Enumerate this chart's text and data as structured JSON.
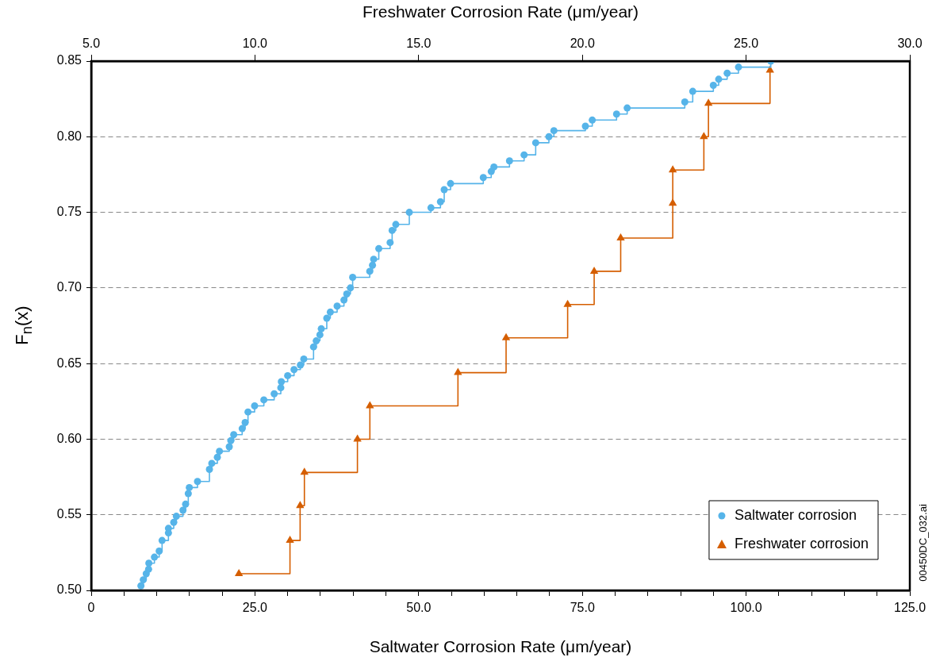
{
  "chart_data": {
    "type": "step",
    "xlabel": "Saltwater Corrosion Rate (μm/year)",
    "x2label": "Freshwater Corrosion Rate (μm/year)",
    "ylabel": "F$_{n}$(x)",
    "xlim": [
      0,
      125
    ],
    "xticks": [
      {
        "value": 0,
        "label": "0"
      },
      {
        "value": 5,
        "label": null
      },
      {
        "value": 10,
        "label": null
      },
      {
        "value": 15,
        "label": null
      },
      {
        "value": 20,
        "label": null
      },
      {
        "value": 25,
        "label": "25.0"
      },
      {
        "value": 30,
        "label": null
      },
      {
        "value": 35,
        "label": null
      },
      {
        "value": 40,
        "label": null
      },
      {
        "value": 45,
        "label": null
      },
      {
        "value": 50,
        "label": "50.0"
      },
      {
        "value": 55,
        "label": null
      },
      {
        "value": 60,
        "label": null
      },
      {
        "value": 65,
        "label": null
      },
      {
        "value": 70,
        "label": null
      },
      {
        "value": 75,
        "label": "75.0"
      },
      {
        "value": 80,
        "label": null
      },
      {
        "value": 85,
        "label": null
      },
      {
        "value": 90,
        "label": null
      },
      {
        "value": 95,
        "label": null
      },
      {
        "value": 100,
        "label": "100.0"
      },
      {
        "value": 105,
        "label": null
      },
      {
        "value": 110,
        "label": null
      },
      {
        "value": 115,
        "label": null
      },
      {
        "value": 120,
        "label": null
      },
      {
        "value": 125,
        "label": "125.0"
      }
    ],
    "x2lim": [
      5,
      30
    ],
    "x2ticks": [
      {
        "value": 5,
        "label": "5.0"
      },
      {
        "value": 10,
        "label": "10.0"
      },
      {
        "value": 15,
        "label": "15.0"
      },
      {
        "value": 20,
        "label": "20.0"
      },
      {
        "value": 25,
        "label": "25.0"
      },
      {
        "value": 30,
        "label": "30.0"
      }
    ],
    "ylim": [
      0.5,
      0.85
    ],
    "yticks": [
      {
        "value": 0.5,
        "label": "0.50"
      },
      {
        "value": 0.55,
        "label": "0.55"
      },
      {
        "value": 0.6,
        "label": "0.60"
      },
      {
        "value": 0.65,
        "label": "0.65"
      },
      {
        "value": 0.7,
        "label": "0.70"
      },
      {
        "value": 0.75,
        "label": "0.75"
      },
      {
        "value": 0.8,
        "label": "0.80"
      },
      {
        "value": 0.85,
        "label": "0.85"
      }
    ],
    "grid": "y",
    "legend": "bottom right",
    "line_style": "solid",
    "annotations": [
      "00450DC_032.ai"
    ],
    "series": [
      {
        "name": "Saltwater corrosion",
        "color": "#56b4e9",
        "marker": "circle",
        "x": [
          7.59,
          7.95,
          8.4,
          8.76,
          8.8,
          9.65,
          10.38,
          10.82,
          11.79,
          11.79,
          12.6,
          13.0,
          14.01,
          14.41,
          14.82,
          14.98,
          16.23,
          18.05,
          18.41,
          19.26,
          19.58,
          21.08,
          21.32,
          21.76,
          23.05,
          23.5,
          23.94,
          24.95,
          26.36,
          27.94,
          28.95,
          29.03,
          30.0,
          30.97,
          31.94,
          32.46,
          33.95,
          34.36,
          34.92,
          35.13,
          35.97,
          36.51,
          37.55,
          38.59,
          39.02,
          39.58,
          39.92,
          42.53,
          42.95,
          43.13,
          43.91,
          45.64,
          45.95,
          46.51,
          48.57,
          51.88,
          53.33,
          53.9,
          54.87,
          59.87,
          61.08,
          61.49,
          63.87,
          66.1,
          67.87,
          69.89,
          70.65,
          75.46,
          76.51,
          80.22,
          81.84,
          90.64,
          91.85,
          95.0,
          95.81,
          97.11,
          98.84,
          103.77
        ],
        "values": [
          0.503,
          0.507,
          0.511,
          0.514,
          0.518,
          0.522,
          0.526,
          0.533,
          0.538,
          0.541,
          0.545,
          0.549,
          0.553,
          0.557,
          0.564,
          0.568,
          0.572,
          0.58,
          0.584,
          0.588,
          0.592,
          0.595,
          0.599,
          0.603,
          0.607,
          0.611,
          0.618,
          0.622,
          0.626,
          0.63,
          0.634,
          0.638,
          0.642,
          0.646,
          0.649,
          0.653,
          0.661,
          0.665,
          0.669,
          0.673,
          0.68,
          0.684,
          0.688,
          0.692,
          0.696,
          0.7,
          0.707,
          0.711,
          0.715,
          0.719,
          0.726,
          0.73,
          0.738,
          0.742,
          0.75,
          0.753,
          0.757,
          0.765,
          0.769,
          0.773,
          0.777,
          0.78,
          0.784,
          0.788,
          0.796,
          0.8,
          0.804,
          0.807,
          0.811,
          0.815,
          0.819,
          0.823,
          0.83,
          0.834,
          0.838,
          0.842,
          0.846,
          0.85
        ]
      },
      {
        "name": "Freshwater corrosion",
        "color": "#d55e00",
        "marker": "triangle",
        "axis": "x2",
        "x": [
          9.51,
          11.07,
          11.38,
          11.51,
          13.13,
          13.51,
          16.2,
          17.67,
          19.55,
          20.36,
          21.17,
          22.76,
          22.76,
          23.71,
          23.85,
          25.73
        ],
        "values": [
          0.511,
          0.533,
          0.556,
          0.578,
          0.6,
          0.622,
          0.644,
          0.667,
          0.689,
          0.711,
          0.733,
          0.756,
          0.778,
          0.8,
          0.822,
          0.844
        ]
      }
    ]
  }
}
